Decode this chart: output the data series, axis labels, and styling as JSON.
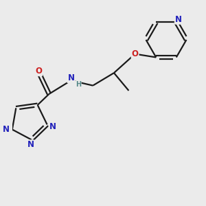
{
  "bg_color": "#ebebeb",
  "bond_color": "#1a1a1a",
  "N_color": "#2222bb",
  "O_color": "#cc2222",
  "NH_color": "#558888",
  "lw": 1.6,
  "fs": 8.5,
  "figsize": [
    3.0,
    3.0
  ],
  "dpi": 100,
  "xlim": [
    -1.6,
    2.7
  ],
  "ylim": [
    -2.3,
    2.5
  ]
}
